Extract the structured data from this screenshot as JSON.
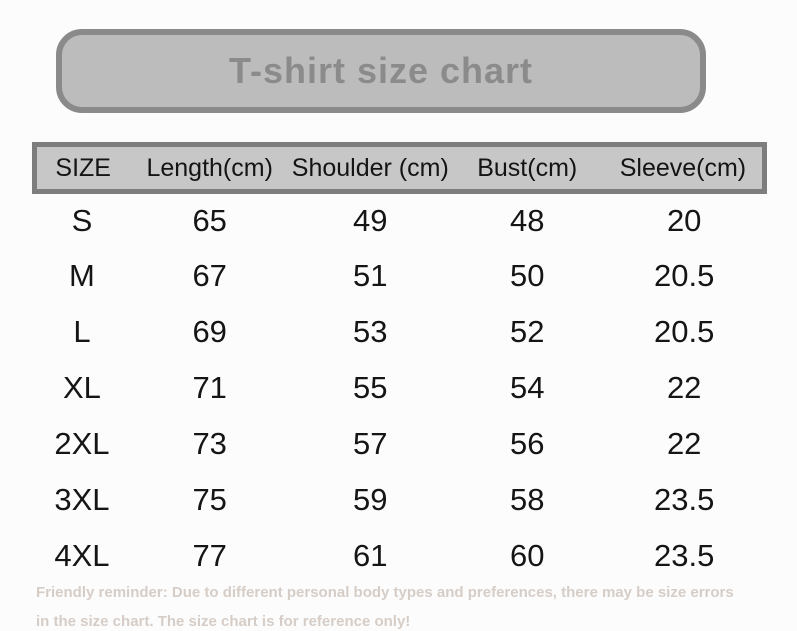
{
  "title": "T-shirt size chart",
  "table": {
    "headers": [
      "SIZE",
      "Length(cm)",
      "Shoulder (cm)",
      "Bust(cm)",
      "Sleeve(cm)"
    ],
    "rows": [
      {
        "size": "S",
        "length": "65",
        "shoulder": "49",
        "bust": "48",
        "sleeve": "20"
      },
      {
        "size": "M",
        "length": "67",
        "shoulder": "51",
        "bust": "50",
        "sleeve": "20.5"
      },
      {
        "size": "L",
        "length": "69",
        "shoulder": "53",
        "bust": "52",
        "sleeve": "20.5"
      },
      {
        "size": "XL",
        "length": "71",
        "shoulder": "55",
        "bust": "54",
        "sleeve": "22"
      },
      {
        "size": "2XL",
        "length": "73",
        "shoulder": "57",
        "bust": "56",
        "sleeve": "22"
      },
      {
        "size": "3XL",
        "length": "75",
        "shoulder": "59",
        "bust": "58",
        "sleeve": "23.5"
      },
      {
        "size": "4XL",
        "length": "77",
        "shoulder": "61",
        "bust": "60",
        "sleeve": "23.5"
      }
    ]
  },
  "footer_note": "Friendly reminder: Due to different personal body types and preferences, there may be size errors in the size chart. The size chart is for reference only!",
  "colors": {
    "background": "#fcfcfc",
    "title_box_fill": "#bcbcbc",
    "title_box_border": "#8a8a8a",
    "title_text": "#8b8b8b",
    "header_bar_fill": "#c7c7c7",
    "header_bar_border": "#7d7d7d",
    "body_text": "#151515",
    "footer_text": "#d6cdc7"
  },
  "chart_data": {
    "type": "table",
    "title": "T-shirt size chart",
    "columns": [
      "SIZE",
      "Length(cm)",
      "Shoulder (cm)",
      "Bust(cm)",
      "Sleeve(cm)"
    ],
    "rows": [
      [
        "S",
        65,
        49,
        48,
        20
      ],
      [
        "M",
        67,
        51,
        50,
        20.5
      ],
      [
        "L",
        69,
        53,
        52,
        20.5
      ],
      [
        "XL",
        71,
        55,
        54,
        22
      ],
      [
        "2XL",
        73,
        57,
        56,
        22
      ],
      [
        "3XL",
        75,
        59,
        58,
        23.5
      ],
      [
        "4XL",
        77,
        61,
        60,
        23.5
      ]
    ],
    "note": "Friendly reminder: Due to different personal body types and preferences, there may be size errors in the size chart. The size chart is for reference only!"
  }
}
